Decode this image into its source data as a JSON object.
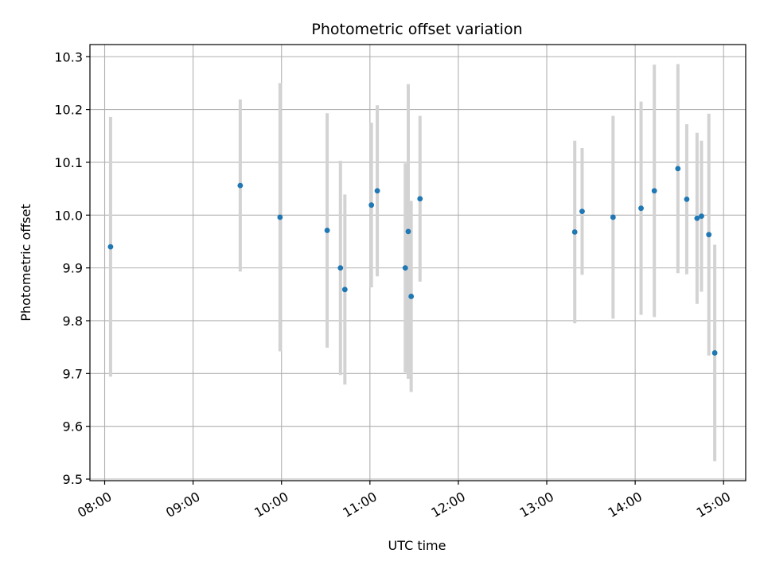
{
  "chart_data": {
    "type": "scatter",
    "title": "Photometric offset variation",
    "xlabel": "UTC time",
    "ylabel": "Photometric offset",
    "x_axis_type": "time",
    "xlim": [
      "07:50",
      "15:15"
    ],
    "ylim": [
      9.497,
      10.323
    ],
    "xticks": [
      "08:00",
      "09:00",
      "10:00",
      "11:00",
      "12:00",
      "13:00",
      "14:00",
      "15:00"
    ],
    "yticks": [
      9.5,
      9.6,
      9.7,
      9.8,
      9.9,
      10.0,
      10.1,
      10.2,
      10.3
    ],
    "ytick_labels": [
      "9.5",
      "9.6",
      "9.7",
      "9.8",
      "9.9",
      "10.0",
      "10.1",
      "10.2",
      "10.3"
    ],
    "grid": true,
    "legend": "none",
    "point_color": "#1f77b4",
    "errorbar_color": "#d3d3d3",
    "points": [
      {
        "x": "08:04",
        "y": 9.94,
        "err": 0.246
      },
      {
        "x": "09:32",
        "y": 10.056,
        "err": 0.163
      },
      {
        "x": "09:59",
        "y": 9.996,
        "err": 0.254
      },
      {
        "x": "10:31",
        "y": 9.971,
        "err": 0.222
      },
      {
        "x": "10:40",
        "y": 9.9,
        "err": 0.203
      },
      {
        "x": "10:43",
        "y": 9.859,
        "err": 0.18
      },
      {
        "x": "11:01",
        "y": 10.019,
        "err": 0.156
      },
      {
        "x": "11:05",
        "y": 10.046,
        "err": 0.162
      },
      {
        "x": "11:24",
        "y": 9.9,
        "err": 0.198
      },
      {
        "x": "11:26",
        "y": 9.969,
        "err": 0.279
      },
      {
        "x": "11:28",
        "y": 9.846,
        "err": 0.181
      },
      {
        "x": "11:34",
        "y": 10.031,
        "err": 0.157
      },
      {
        "x": "13:19",
        "y": 9.968,
        "err": 0.173
      },
      {
        "x": "13:24",
        "y": 10.007,
        "err": 0.12
      },
      {
        "x": "13:45",
        "y": 9.996,
        "err": 0.192
      },
      {
        "x": "14:04",
        "y": 10.013,
        "err": 0.202
      },
      {
        "x": "14:13",
        "y": 10.046,
        "err": 0.239
      },
      {
        "x": "14:29",
        "y": 10.088,
        "err": 0.198
      },
      {
        "x": "14:35",
        "y": 10.03,
        "err": 0.142
      },
      {
        "x": "14:42",
        "y": 9.994,
        "err": 0.162
      },
      {
        "x": "14:45",
        "y": 9.998,
        "err": 0.143
      },
      {
        "x": "14:50",
        "y": 9.963,
        "err": 0.229
      },
      {
        "x": "14:54",
        "y": 9.739,
        "err": 0.205
      }
    ]
  }
}
